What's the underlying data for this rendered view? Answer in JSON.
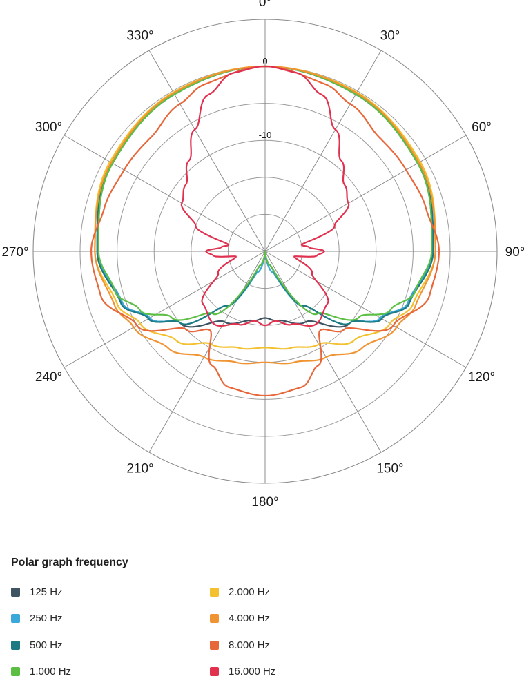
{
  "chart_data": {
    "type": "polar",
    "angle_labels": [
      "0°",
      "30°",
      "60°",
      "90°",
      "120°",
      "150°",
      "180°",
      "210°",
      "240°",
      "270°",
      "300°",
      "330°"
    ],
    "angles_deg": [
      0,
      30,
      60,
      90,
      120,
      150,
      180,
      210,
      240,
      270,
      300,
      330
    ],
    "ring_labels": [
      {
        "value": 0,
        "text": "0"
      },
      {
        "value": -10,
        "text": "-10"
      }
    ],
    "rlim_db": [
      -25,
      0
    ],
    "rings_db": [
      0,
      -5,
      -10,
      -15,
      -20
    ],
    "grid": true,
    "legend_title": "Polar graph frequency",
    "legend_position": "bottom",
    "series": [
      {
        "name": "125 Hz",
        "color": "#3f5463",
        "points": [
          [
            0,
            0
          ],
          [
            30,
            -0.5
          ],
          [
            60,
            -1.2
          ],
          [
            90,
            -2.5
          ],
          [
            110,
            -4.5
          ],
          [
            120,
            -7
          ],
          [
            130,
            -10
          ],
          [
            150,
            -14
          ],
          [
            170,
            -15.5
          ],
          [
            180,
            -16
          ],
          [
            190,
            -15.5
          ],
          [
            210,
            -14
          ],
          [
            230,
            -10
          ],
          [
            240,
            -7
          ],
          [
            250,
            -4.5
          ],
          [
            270,
            -2.5
          ],
          [
            300,
            -1.2
          ],
          [
            330,
            -0.5
          ]
        ]
      },
      {
        "name": "250 Hz",
        "color": "#3aa8d8",
        "points": [
          [
            0,
            0
          ],
          [
            30,
            -0.5
          ],
          [
            60,
            -1.2
          ],
          [
            90,
            -2.4
          ],
          [
            110,
            -4.5
          ],
          [
            120,
            -7
          ],
          [
            130,
            -10
          ],
          [
            145,
            -16
          ],
          [
            160,
            -22
          ],
          [
            180,
            -25
          ],
          [
            200,
            -22
          ],
          [
            215,
            -16
          ],
          [
            230,
            -10
          ],
          [
            240,
            -7
          ],
          [
            250,
            -4.5
          ],
          [
            270,
            -2.4
          ],
          [
            300,
            -1.2
          ],
          [
            330,
            -0.5
          ]
        ]
      },
      {
        "name": "500 Hz",
        "color": "#1d7a82",
        "points": [
          [
            0,
            0
          ],
          [
            30,
            -0.5
          ],
          [
            60,
            -1.1
          ],
          [
            90,
            -2.3
          ],
          [
            110,
            -4.3
          ],
          [
            120,
            -6.8
          ],
          [
            130,
            -10
          ],
          [
            145,
            -16
          ],
          [
            160,
            -23
          ],
          [
            180,
            -25
          ],
          [
            200,
            -23
          ],
          [
            215,
            -16
          ],
          [
            230,
            -10
          ],
          [
            240,
            -6.8
          ],
          [
            250,
            -4.3
          ],
          [
            270,
            -2.3
          ],
          [
            300,
            -1.1
          ],
          [
            330,
            -0.5
          ]
        ]
      },
      {
        "name": "1.000 Hz",
        "color": "#5cbf44",
        "points": [
          [
            0,
            0
          ],
          [
            30,
            -0.5
          ],
          [
            60,
            -1.2
          ],
          [
            90,
            -2.5
          ],
          [
            105,
            -4
          ],
          [
            115,
            -6.3
          ],
          [
            125,
            -9.5
          ],
          [
            140,
            -14
          ],
          [
            160,
            -23
          ],
          [
            180,
            -25
          ],
          [
            200,
            -23
          ],
          [
            220,
            -14
          ],
          [
            235,
            -9.5
          ],
          [
            245,
            -6.3
          ],
          [
            255,
            -4
          ],
          [
            270,
            -2.5
          ],
          [
            300,
            -1.2
          ],
          [
            330,
            -0.5
          ]
        ]
      },
      {
        "name": "2.000 Hz",
        "color": "#f3c12f",
        "points": [
          [
            0,
            0
          ],
          [
            30,
            -0.2
          ],
          [
            60,
            -0.8
          ],
          [
            90,
            -2
          ],
          [
            110,
            -3.8
          ],
          [
            120,
            -5.5
          ],
          [
            135,
            -8
          ],
          [
            150,
            -10.5
          ],
          [
            165,
            -11.5
          ],
          [
            180,
            -12
          ],
          [
            195,
            -11.5
          ],
          [
            210,
            -10.5
          ],
          [
            225,
            -8
          ],
          [
            240,
            -5.5
          ],
          [
            250,
            -3.8
          ],
          [
            270,
            -2
          ],
          [
            300,
            -0.8
          ],
          [
            330,
            -0.2
          ]
        ]
      },
      {
        "name": "4.000 Hz",
        "color": "#f09433",
        "points": [
          [
            0,
            0
          ],
          [
            30,
            -0.3
          ],
          [
            60,
            -1
          ],
          [
            90,
            -2
          ],
          [
            110,
            -3.4
          ],
          [
            120,
            -4.5
          ],
          [
            135,
            -6.5
          ],
          [
            150,
            -8.5
          ],
          [
            165,
            -9.5
          ],
          [
            180,
            -10
          ],
          [
            195,
            -9.5
          ],
          [
            210,
            -8.5
          ],
          [
            225,
            -6.5
          ],
          [
            240,
            -4.5
          ],
          [
            250,
            -3.4
          ],
          [
            270,
            -2
          ],
          [
            300,
            -1
          ],
          [
            330,
            -0.3
          ]
        ]
      },
      {
        "name": "8.000 Hz",
        "color": "#e8673a",
        "points": [
          [
            0,
            0
          ],
          [
            20,
            -1
          ],
          [
            30,
            -2
          ],
          [
            45,
            -3.2
          ],
          [
            60,
            -3
          ],
          [
            75,
            -2.5
          ],
          [
            90,
            -1.5
          ],
          [
            105,
            -2
          ],
          [
            120,
            -5
          ],
          [
            135,
            -10
          ],
          [
            145,
            -12
          ],
          [
            155,
            -8
          ],
          [
            165,
            -6
          ],
          [
            180,
            -5.5
          ],
          [
            195,
            -6
          ],
          [
            205,
            -8
          ],
          [
            215,
            -12
          ],
          [
            225,
            -10
          ],
          [
            240,
            -5
          ],
          [
            255,
            -2
          ],
          [
            270,
            -1.5
          ],
          [
            285,
            -2.5
          ],
          [
            300,
            -3
          ],
          [
            315,
            -3.2
          ],
          [
            330,
            -2
          ],
          [
            340,
            -1
          ]
        ]
      },
      {
        "name": "16.000 Hz",
        "color": "#e0314f",
        "points": [
          [
            0,
            0
          ],
          [
            10,
            -0.5
          ],
          [
            20,
            -2.5
          ],
          [
            30,
            -6
          ],
          [
            40,
            -9
          ],
          [
            50,
            -11
          ],
          [
            60,
            -12
          ],
          [
            70,
            -15
          ],
          [
            80,
            -20
          ],
          [
            85,
            -19
          ],
          [
            90,
            -17
          ],
          [
            95,
            -18
          ],
          [
            100,
            -21
          ],
          [
            115,
            -18
          ],
          [
            130,
            -14
          ],
          [
            145,
            -13
          ],
          [
            160,
            -14.5
          ],
          [
            172,
            -15.5
          ],
          [
            180,
            -15
          ],
          [
            188,
            -15.5
          ],
          [
            200,
            -14.5
          ],
          [
            215,
            -13
          ],
          [
            230,
            -14
          ],
          [
            245,
            -18
          ],
          [
            260,
            -21
          ],
          [
            265,
            -18
          ],
          [
            270,
            -17
          ],
          [
            275,
            -19
          ],
          [
            280,
            -20
          ],
          [
            290,
            -15
          ],
          [
            300,
            -12
          ],
          [
            310,
            -11
          ],
          [
            320,
            -9
          ],
          [
            330,
            -6
          ],
          [
            340,
            -2.5
          ],
          [
            350,
            -0.5
          ]
        ]
      }
    ]
  }
}
